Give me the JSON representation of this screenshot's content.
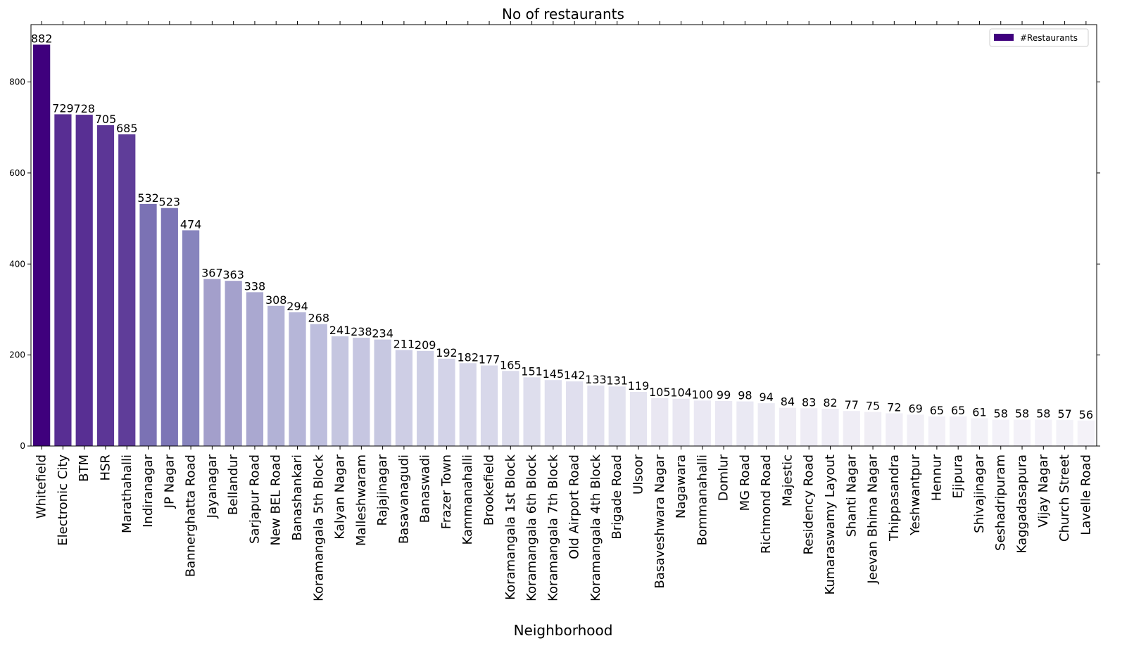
{
  "chart_data": {
    "type": "bar",
    "title": "No of restaurants",
    "xlabel": "Neighborhood",
    "ylabel": "",
    "ylim": [
      0,
      926
    ],
    "yticks": [
      0,
      200,
      400,
      600,
      800
    ],
    "legend_position": "top-right",
    "grid": false,
    "categories": [
      "Whitefield",
      "Electronic City",
      "BTM",
      "HSR",
      "Marathahalli",
      "Indiranagar",
      "JP Nagar",
      "Bannerghatta Road",
      "Jayanagar",
      "Bellandur",
      "Sarjapur Road",
      "New BEL Road",
      "Banashankari",
      "Koramangala 5th Block",
      "Kalyan Nagar",
      "Malleshwaram",
      "Rajajinagar",
      "Basavanagudi",
      "Banaswadi",
      "Frazer Town",
      "Kammanahalli",
      "Brookefield",
      "Koramangala 1st Block",
      "Koramangala 6th Block",
      "Koramangala 7th Block",
      "Old Airport Road",
      "Koramangala 4th Block",
      "Brigade Road",
      "Ulsoor",
      "Basaveshwara Nagar",
      "Nagawara",
      "Bommanahalli",
      "Domlur",
      "MG Road",
      "Richmond Road",
      "Majestic",
      "Residency Road",
      "Kumaraswamy Layout",
      "Shanti Nagar",
      "Jeevan Bhima Nagar",
      "Thippasandra",
      "Yeshwantpur",
      "Hennur",
      "Ejipura",
      "Shivajinagar",
      "Seshadripuram",
      "Kaggadasapura",
      "Vijay Nagar",
      "Church Street",
      "Lavelle Road"
    ],
    "series": [
      {
        "name": "#Restaurants",
        "values": [
          882,
          729,
          728,
          705,
          685,
          532,
          523,
          474,
          367,
          363,
          338,
          308,
          294,
          268,
          241,
          238,
          234,
          211,
          209,
          192,
          182,
          177,
          165,
          151,
          145,
          142,
          133,
          131,
          119,
          105,
          104,
          100,
          99,
          98,
          94,
          84,
          83,
          82,
          77,
          75,
          72,
          69,
          65,
          65,
          61,
          58,
          58,
          58,
          57,
          56
        ]
      }
    ],
    "colors": {
      "palette": "Purples",
      "legend_swatch": "#3f007d",
      "axis": "#000000"
    }
  }
}
